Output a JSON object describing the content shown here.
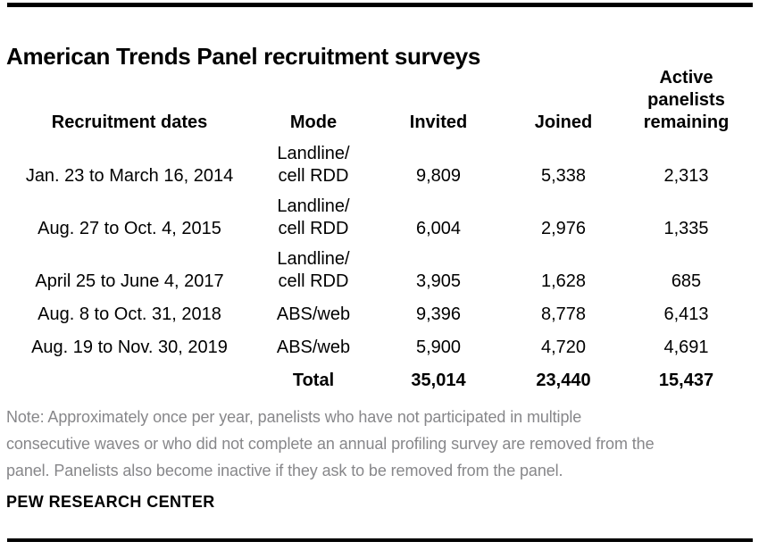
{
  "title": "American Trends Panel recruitment surveys",
  "table": {
    "headers": {
      "dates": "Recruitment dates",
      "mode": "Mode",
      "invited": "Invited",
      "joined": "Joined",
      "active": "Active panelists remaining"
    },
    "rows": [
      {
        "dates": "Jan. 23 to March 16, 2014",
        "mode": "Landline/\ncell RDD",
        "invited": "9,809",
        "joined": "5,338",
        "active": "2,313"
      },
      {
        "dates": "Aug. 27 to Oct. 4, 2015",
        "mode": "Landline/\ncell RDD",
        "invited": "6,004",
        "joined": "2,976",
        "active": "1,335"
      },
      {
        "dates": "April 25 to June 4, 2017",
        "mode": "Landline/\ncell RDD",
        "invited": "3,905",
        "joined": "1,628",
        "active": "685"
      },
      {
        "dates": "Aug. 8 to Oct. 31, 2018",
        "mode": "ABS/web",
        "invited": "9,396",
        "joined": "8,778",
        "active": "6,413"
      },
      {
        "dates": "Aug. 19 to Nov. 30, 2019",
        "mode": "ABS/web",
        "invited": "5,900",
        "joined": "4,720",
        "active": "4,691"
      }
    ],
    "total": {
      "label": "Total",
      "invited": "35,014",
      "joined": "23,440",
      "active": "15,437"
    }
  },
  "note": {
    "lines": [
      "Note: Approximately once per year, panelists who have not participated in multiple",
      "consecutive waves or who did not complete an annual profiling survey are removed from the",
      "panel. Panelists also become inactive if they ask to be removed from the panel."
    ]
  },
  "brand": "PEW RESEARCH CENTER",
  "colors": {
    "rule": "#000000",
    "title_text": "#000000",
    "body_text": "#000000",
    "note_text": "#87878a",
    "background": "#ffffff"
  },
  "chart_data": {
    "type": "table",
    "title": "American Trends Panel recruitment surveys",
    "columns": [
      "Recruitment dates",
      "Mode",
      "Invited",
      "Joined",
      "Active panelists remaining"
    ],
    "rows": [
      [
        "Jan. 23 to March 16, 2014",
        "Landline/cell RDD",
        9809,
        5338,
        2313
      ],
      [
        "Aug. 27 to Oct. 4, 2015",
        "Landline/cell RDD",
        6004,
        2976,
        1335
      ],
      [
        "April 25 to June 4, 2017",
        "Landline/cell RDD",
        3905,
        1628,
        685
      ],
      [
        "Aug. 8 to Oct. 31, 2018",
        "ABS/web",
        9396,
        8778,
        6413
      ],
      [
        "Aug. 19 to Nov. 30, 2019",
        "ABS/web",
        5900,
        4720,
        4691
      ]
    ],
    "total_row": [
      "",
      "Total",
      35014,
      23440,
      15437
    ],
    "source": "PEW RESEARCH CENTER",
    "note": "Note: Approximately once per year, panelists who have not participated in multiple consecutive waves or who did not complete an annual profiling survey are removed from the panel. Panelists also become inactive if they ask to be removed from the panel."
  }
}
